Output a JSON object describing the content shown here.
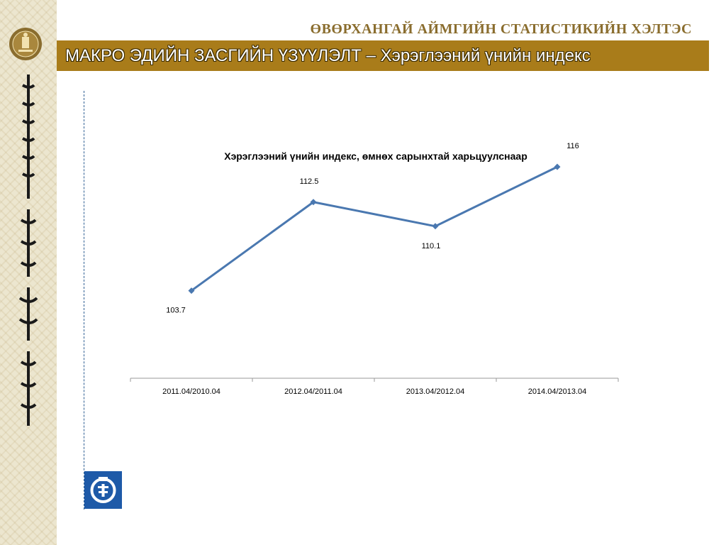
{
  "header": {
    "org_name": "ӨВӨРХАНГАЙ АЙМГИЙН СТАТИСТИКИЙН ХЭЛТЭС",
    "page_title": "МАКРО ЭДИЙН ЗАСГИЙН ҮЗҮҮЛЭЛТ – Хэрэглээний үнийн индекс"
  },
  "colors": {
    "title_bar": "#a97c1a",
    "line": "#4a78b0",
    "logo": "#1e5aa8"
  },
  "icons": {
    "emblem": "state-emblem-icon",
    "logo": "statistics-logo-icon"
  },
  "chart_data": {
    "type": "line",
    "title": "Хэрэглээний үнийн индекс, өмнөх сарынхтай харьцуулснаар",
    "categories": [
      "2011.04/2010.04",
      "2012.04/2011.04",
      "2013.04/2012.04",
      "2014.04/2013.04"
    ],
    "values": [
      103.7,
      112.5,
      110.1,
      116
    ],
    "data_labels": [
      "103.7",
      "112.5",
      "110.1",
      "116"
    ],
    "xlabel": "",
    "ylabel": "",
    "ylim": [
      95,
      122
    ],
    "grid": false,
    "legend": "none"
  }
}
